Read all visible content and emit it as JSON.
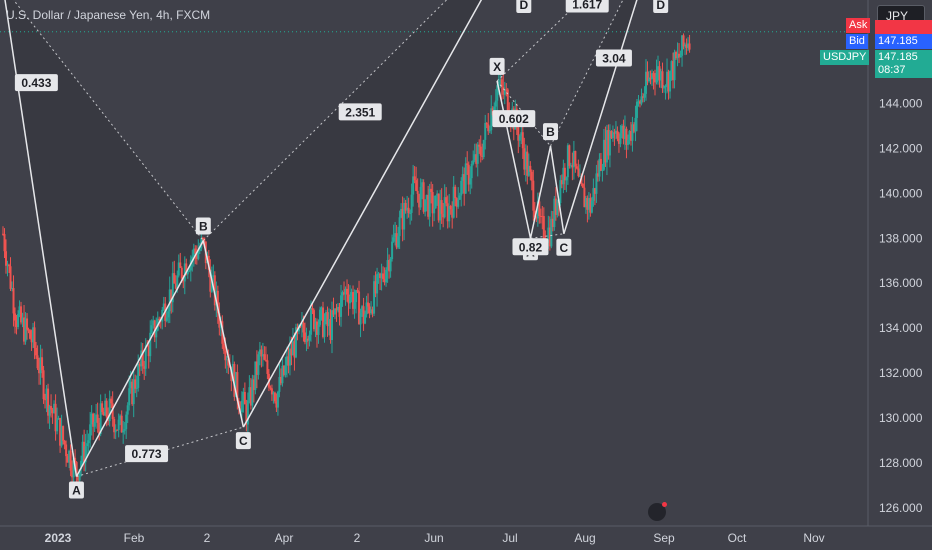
{
  "header": {
    "title": "U.S. Dollar / Japanese Yen, 4h, FXCM"
  },
  "currency_box": "JPY",
  "price_tags": {
    "ask_label": "Ask",
    "bid_label": "Bid",
    "bid_price": "147.185",
    "symbol_label": "USDJPY",
    "symbol_price": "147.185",
    "countdown": "08:37"
  },
  "colors": {
    "background": "#3f4049",
    "up": "#26a69a",
    "down": "#ef5350",
    "ask": "#f23645",
    "bid": "#2962ff",
    "last": "#22ab94",
    "pattern": "#e6e7ea",
    "orange_line": "#ff9800"
  },
  "chart_data": {
    "type": "candlestick",
    "instrument": "USD/JPY",
    "timeframe": "4h",
    "x_ticks": [
      "2023",
      "Feb",
      "2",
      "Apr",
      "2",
      "Jun",
      "Jul",
      "Aug",
      "Sep",
      "Oct",
      "Nov"
    ],
    "y_ticks": [
      "146.000",
      "144.000",
      "142.000",
      "140.000",
      "138.000",
      "136.000",
      "134.000",
      "132.000",
      "130.000",
      "128.000",
      "126.000"
    ],
    "ylim": [
      125.2,
      148.6
    ],
    "current_price": 147.185,
    "price_path": [
      {
        "t": 0.0,
        "p": 138.2
      },
      {
        "t": 0.4,
        "p": 134.5
      },
      {
        "t": 0.9,
        "p": 133.4
      },
      {
        "t": 1.3,
        "p": 131.0
      },
      {
        "t": 1.8,
        "p": 129.0
      },
      {
        "t": 2.2,
        "p": 127.6
      },
      {
        "t": 2.7,
        "p": 129.7
      },
      {
        "t": 3.2,
        "p": 130.3
      },
      {
        "t": 3.5,
        "p": 129.5
      },
      {
        "t": 4.0,
        "p": 131.8
      },
      {
        "t": 4.5,
        "p": 133.8
      },
      {
        "t": 5.0,
        "p": 135.5
      },
      {
        "t": 5.5,
        "p": 137.0
      },
      {
        "t": 6.0,
        "p": 137.7
      },
      {
        "t": 6.3,
        "p": 135.7
      },
      {
        "t": 6.7,
        "p": 133.0
      },
      {
        "t": 7.0,
        "p": 131.2
      },
      {
        "t": 7.3,
        "p": 130.2
      },
      {
        "t": 7.7,
        "p": 132.8
      },
      {
        "t": 8.2,
        "p": 131.0
      },
      {
        "t": 8.7,
        "p": 133.2
      },
      {
        "t": 9.3,
        "p": 134.5
      },
      {
        "t": 9.8,
        "p": 134.0
      },
      {
        "t": 10.3,
        "p": 135.8
      },
      {
        "t": 10.8,
        "p": 134.5
      },
      {
        "t": 11.3,
        "p": 136.0
      },
      {
        "t": 11.8,
        "p": 138.3
      },
      {
        "t": 12.3,
        "p": 140.2
      },
      {
        "t": 12.8,
        "p": 139.5
      },
      {
        "t": 13.3,
        "p": 139.2
      },
      {
        "t": 13.8,
        "p": 140.5
      },
      {
        "t": 14.3,
        "p": 141.8
      },
      {
        "t": 14.8,
        "p": 144.8
      },
      {
        "t": 15.1,
        "p": 144.2
      },
      {
        "t": 15.5,
        "p": 142.5
      },
      {
        "t": 15.8,
        "p": 140.5
      },
      {
        "t": 16.1,
        "p": 138.4
      },
      {
        "t": 16.4,
        "p": 138.3
      },
      {
        "t": 16.7,
        "p": 140.6
      },
      {
        "t": 17.0,
        "p": 141.8
      },
      {
        "t": 17.3,
        "p": 140.0
      },
      {
        "t": 17.6,
        "p": 139.4
      },
      {
        "t": 17.9,
        "p": 141.5
      },
      {
        "t": 18.3,
        "p": 143.0
      },
      {
        "t": 18.7,
        "p": 142.3
      },
      {
        "t": 19.1,
        "p": 144.2
      },
      {
        "t": 19.5,
        "p": 145.5
      },
      {
        "t": 19.9,
        "p": 145.1
      },
      {
        "t": 20.3,
        "p": 146.2
      },
      {
        "t": 20.6,
        "p": 147.2
      }
    ],
    "patterns": [
      {
        "name": "pattern-large",
        "points": [
          {
            "label": "",
            "t": 0.0,
            "p": 149.2
          },
          {
            "label": "A",
            "t": 2.2,
            "p": 127.4
          },
          {
            "label": "B",
            "t": 6.0,
            "p": 137.9
          },
          {
            "label": "C",
            "t": 7.2,
            "p": 129.6
          },
          {
            "label": "D",
            "t": 15.6,
            "p": 152.0
          }
        ],
        "ratios": [
          {
            "text": "0.433",
            "t": 1.0,
            "p": 144.9
          },
          {
            "text": "0.773",
            "t": 4.3,
            "p": 128.4
          },
          {
            "text": "2.351",
            "t": 10.7,
            "p": 143.6
          }
        ]
      },
      {
        "name": "pattern-small",
        "points": [
          {
            "label": "X",
            "t": 14.8,
            "p": 145.0
          },
          {
            "label": "A",
            "t": 15.8,
            "p": 138.0
          },
          {
            "label": "B",
            "t": 16.4,
            "p": 142.1
          },
          {
            "label": "C",
            "t": 16.8,
            "p": 138.2
          },
          {
            "label": "D",
            "t": 19.7,
            "p": 152.0
          }
        ],
        "ratios": [
          {
            "text": "0.602",
            "t": 15.3,
            "p": 143.3
          },
          {
            "text": "0.82",
            "t": 15.8,
            "p": 137.6
          },
          {
            "text": "1.617",
            "t": 17.5,
            "p": 148.4
          },
          {
            "text": "3.04",
            "t": 18.3,
            "p": 146.0
          }
        ]
      }
    ],
    "orange_line": {
      "t_start": 12.9,
      "p": 149.2
    },
    "plot_t_range": [
      0,
      26
    ]
  }
}
